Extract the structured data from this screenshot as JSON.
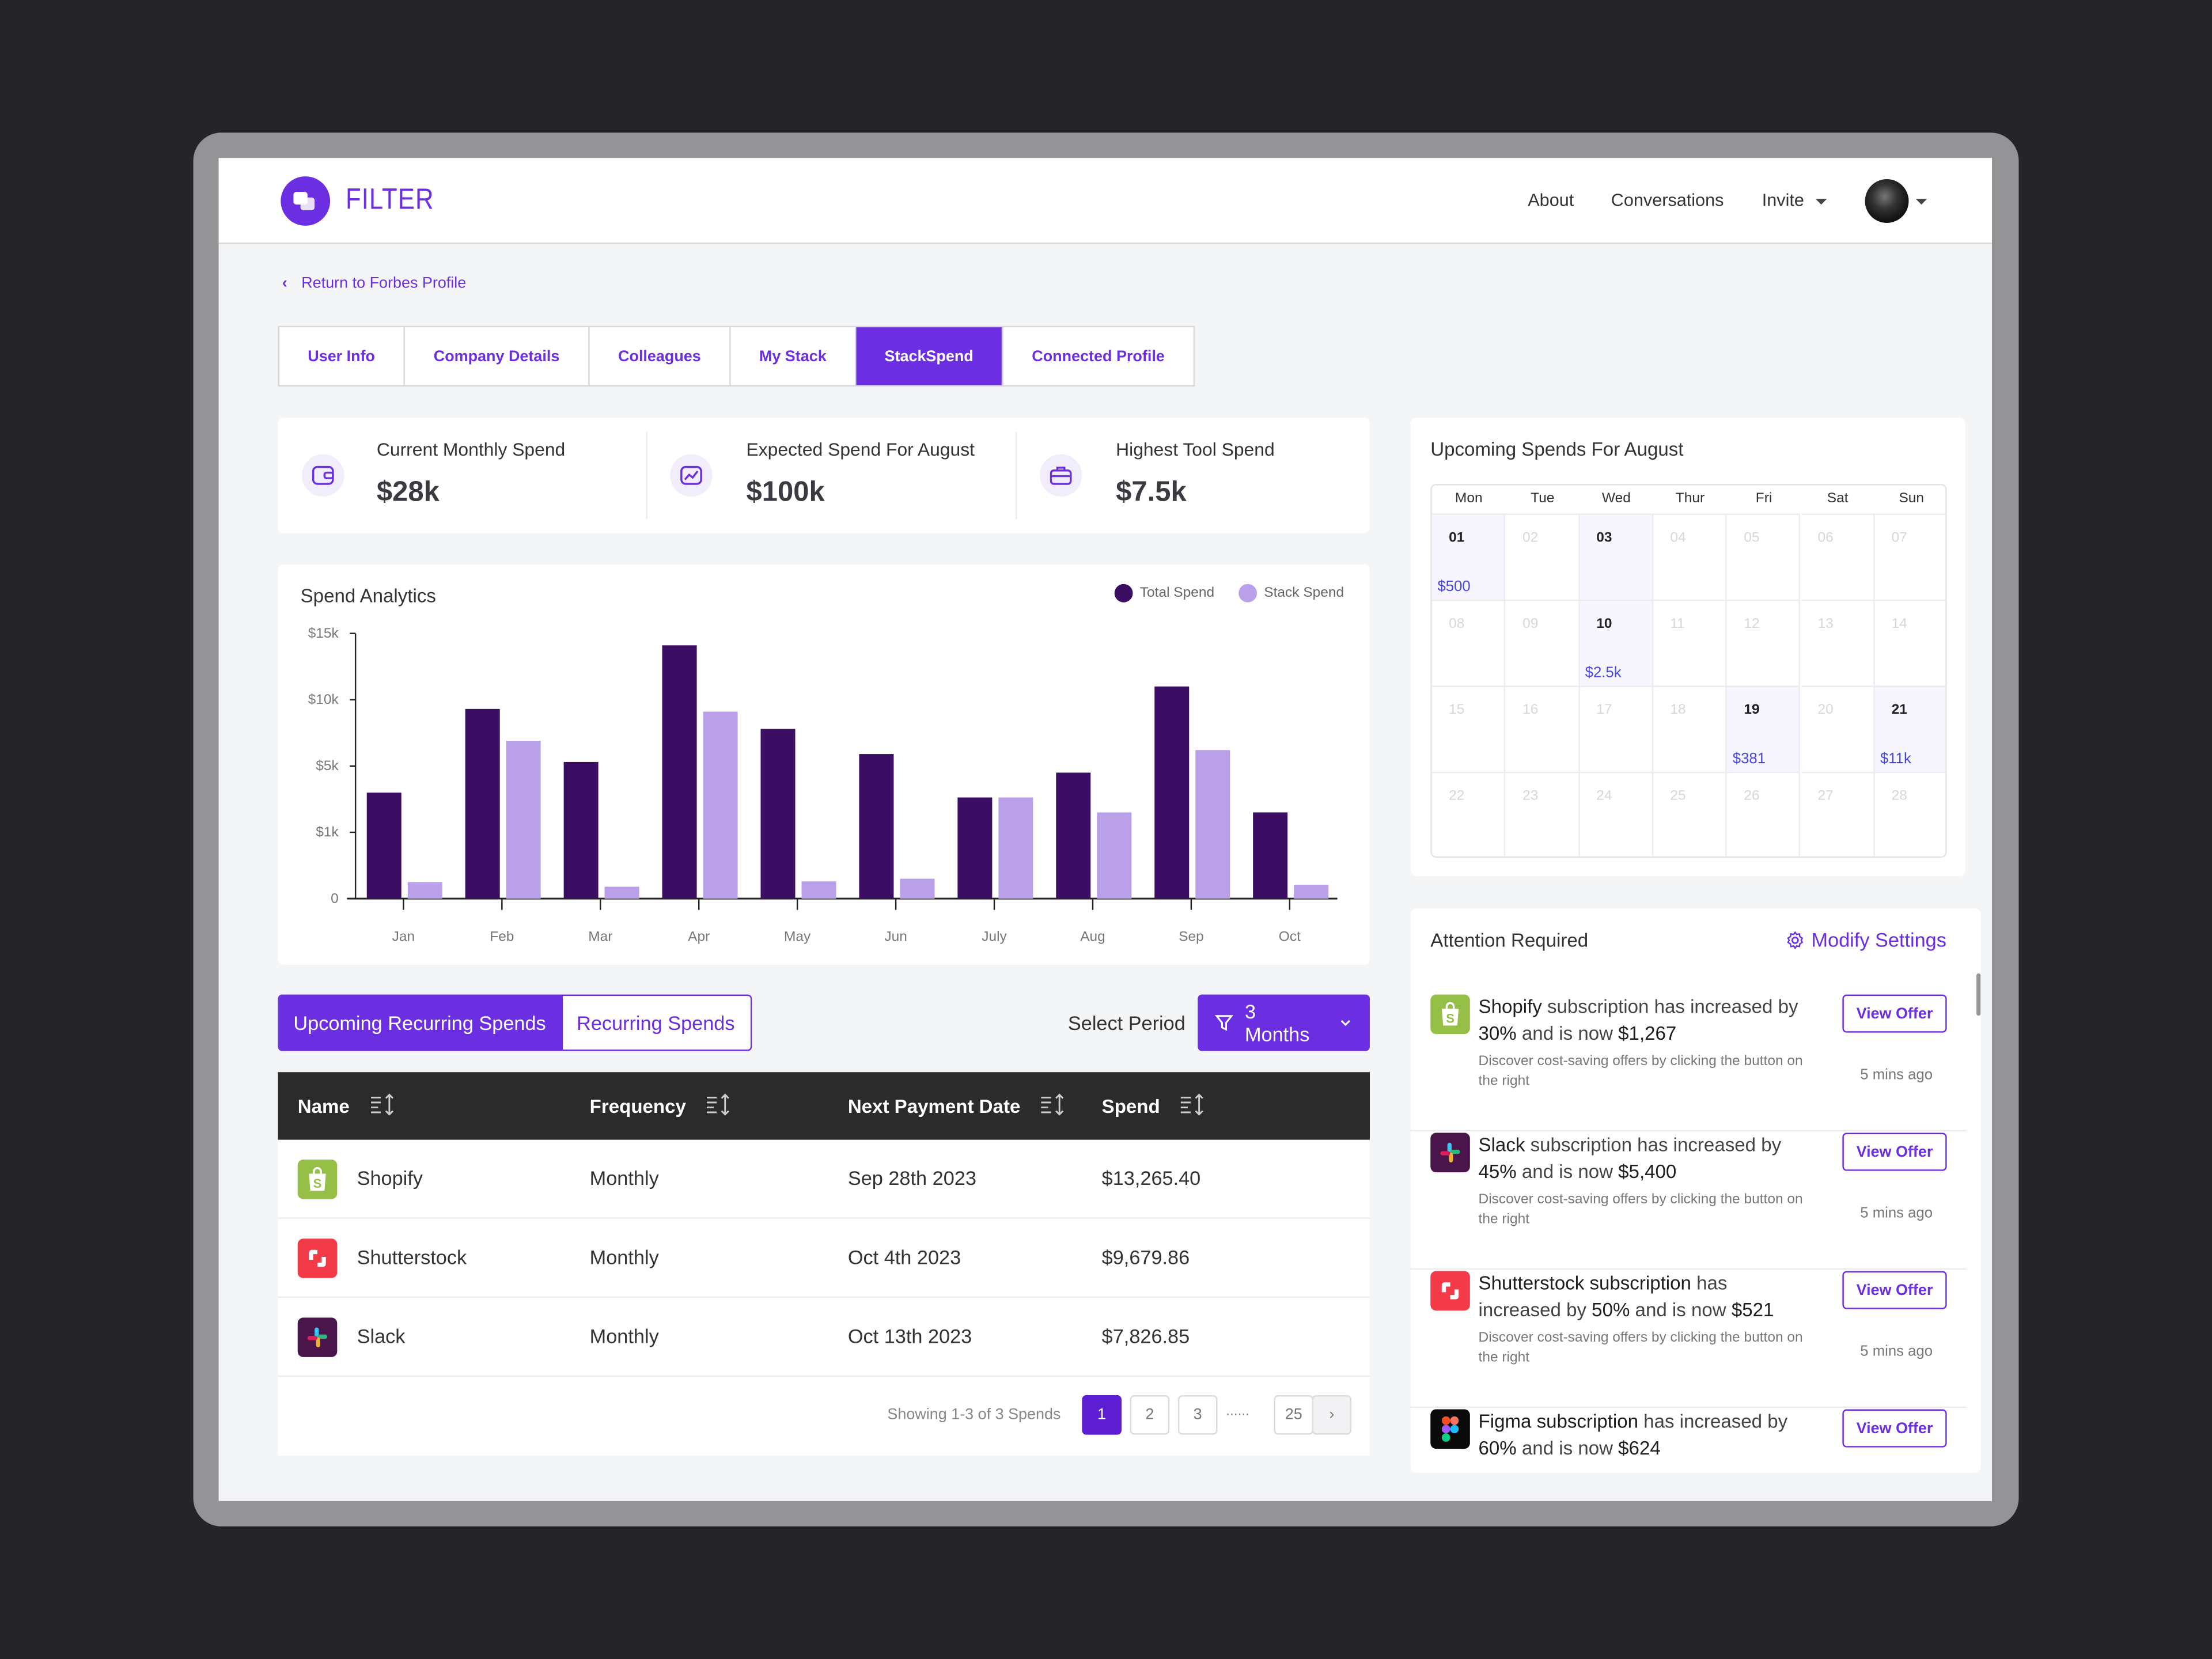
{
  "header": {
    "brand": "FILTER",
    "nav": [
      "About",
      "Conversations",
      "Invite"
    ]
  },
  "back_link": "Return to Forbes Profile",
  "tabs": [
    {
      "label": "User Info",
      "active": false
    },
    {
      "label": "Company Details",
      "active": false
    },
    {
      "label": "Colleagues",
      "active": false
    },
    {
      "label": "My Stack",
      "active": false
    },
    {
      "label": "StackSpend",
      "active": true
    },
    {
      "label": "Connected Profile",
      "active": false
    }
  ],
  "stats": [
    {
      "label": "Current Monthly Spend",
      "value": "$28k",
      "icon": "wallet-icon"
    },
    {
      "label": "Expected Spend For August",
      "value": "$100k",
      "icon": "trend-chart-icon"
    },
    {
      "label": "Highest Tool Spend",
      "value": "$7.5k",
      "icon": "briefcase-icon"
    }
  ],
  "colors": {
    "accent": "#6b2ee0",
    "total": "#3b0d63",
    "stack": "#b9a0e8",
    "calendar_amount": "#4a46e0"
  },
  "chart_data": {
    "type": "bar",
    "title": "Spend Analytics",
    "categories": [
      "Jan",
      "Feb",
      "Mar",
      "Apr",
      "May",
      "Jun",
      "July",
      "Aug",
      "Sep",
      "Oct"
    ],
    "series": [
      {
        "name": "Total Spend",
        "values": [
          3400,
          9300,
          5300,
          14100,
          7800,
          5900,
          3100,
          4600,
          11000,
          2200
        ]
      },
      {
        "name": "Stack Spend",
        "values": [
          250,
          6900,
          180,
          9100,
          260,
          300,
          3100,
          2200,
          6200,
          210
        ]
      }
    ],
    "y_ticks": [
      0,
      1000,
      5000,
      10000,
      15000
    ],
    "y_tick_labels": [
      "0",
      "$1k",
      "$5k",
      "$10k",
      "$15k"
    ],
    "ylim": [
      0,
      15000
    ],
    "y_scale": "piecewise (evenly spaced ticks)",
    "xlabel": "",
    "ylabel": "",
    "legend": "top-right",
    "grid": false
  },
  "spends": {
    "toggle": [
      "Upcoming Recurring Spends",
      "Recurring Spends"
    ],
    "period_label": "Select Period",
    "period_value": "3 Months",
    "columns": [
      "Name",
      "Frequency",
      "Next Payment Date",
      "Spend"
    ],
    "rows": [
      {
        "name": "Shopify",
        "frequency": "Monthly",
        "date": "Sep 28th 2023",
        "spend": "$13,265.40",
        "icon": "shopify"
      },
      {
        "name": "Shutterstock",
        "frequency": "Monthly",
        "date": "Oct 4th 2023",
        "spend": "$9,679.86",
        "icon": "shutterstock"
      },
      {
        "name": "Slack",
        "frequency": "Monthly",
        "date": "Oct 13th 2023",
        "spend": "$7,826.85",
        "icon": "slack"
      }
    ],
    "showing": "Showing 1-3 of 3 Spends",
    "pages": [
      "1",
      "2",
      "3",
      "......",
      "25"
    ],
    "current_page": "1"
  },
  "calendar": {
    "title": "Upcoming Spends For August",
    "weekdays": [
      "Mon",
      "Tue",
      "Wed",
      "Thur",
      "Fri",
      "Sat",
      "Sun"
    ],
    "days": [
      "01",
      "02",
      "03",
      "04",
      "05",
      "06",
      "07",
      "08",
      "09",
      "10",
      "11",
      "12",
      "13",
      "14",
      "15",
      "16",
      "17",
      "18",
      "19",
      "20",
      "21",
      "22",
      "23",
      "24",
      "25",
      "26",
      "27",
      "28"
    ],
    "active": {
      "01": "$500",
      "03": "",
      "10": "$2.5k",
      "19": "$381",
      "21": "$11k"
    }
  },
  "attention": {
    "title": "Attention Required",
    "settings_label": "Modify Settings",
    "items": [
      {
        "icon": "shopify",
        "lead": "Shopify",
        "mid": " subscription has increased by ",
        "pct": "30%",
        "and": " and is now ",
        "amount": "$1,267",
        "sub": "Discover cost-saving offers by clicking the button on the right",
        "button": "View Offer",
        "time": "5 mins ago"
      },
      {
        "icon": "slack",
        "lead": "Slack",
        "mid": " subscription has increased by ",
        "pct": "45%",
        "and": " and is now ",
        "amount": "$5,400",
        "sub": "Discover cost-saving offers by clicking the button on the right",
        "button": "View Offer",
        "time": "5 mins ago"
      },
      {
        "icon": "shutterstock",
        "lead": "Shutterstock subscription",
        "mid": " has increased by ",
        "pct": "50%",
        "and": " and is now ",
        "amount": "$521",
        "sub": "Discover cost-saving offers by clicking the button on the right",
        "button": "View Offer",
        "time": "5 mins ago"
      },
      {
        "icon": "figma",
        "lead": "Figma subscription",
        "mid": " has increased by ",
        "pct": "60%",
        "and": " and is now ",
        "amount": "$624",
        "sub": "",
        "button": "View Offer",
        "time": ""
      }
    ]
  }
}
